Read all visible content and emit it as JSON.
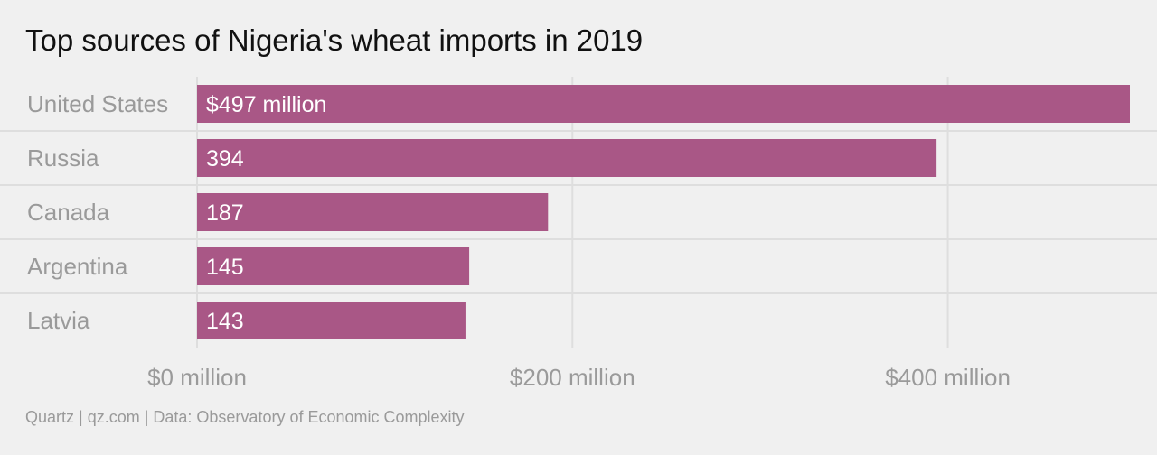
{
  "title": "Top sources of Nigeria's wheat imports in 2019",
  "source": "Quartz | qz.com | Data: Observatory of Economic Complexity",
  "colors": {
    "bar": "#a95786",
    "grid": "#dedede",
    "background": "#f0f0f0"
  },
  "chart_data": {
    "type": "bar",
    "orientation": "horizontal",
    "categories": [
      "United States",
      "Russia",
      "Canada",
      "Argentina",
      "Latvia"
    ],
    "values": [
      497,
      394,
      187,
      145,
      143
    ],
    "data_labels": [
      "$497 million",
      "394",
      "187",
      "145",
      "143"
    ],
    "x_ticks": [
      0,
      200,
      400
    ],
    "x_tick_labels": [
      "$0 million",
      "$200 million",
      "$400 million"
    ],
    "xlim": [
      0,
      497
    ],
    "grid": true
  }
}
